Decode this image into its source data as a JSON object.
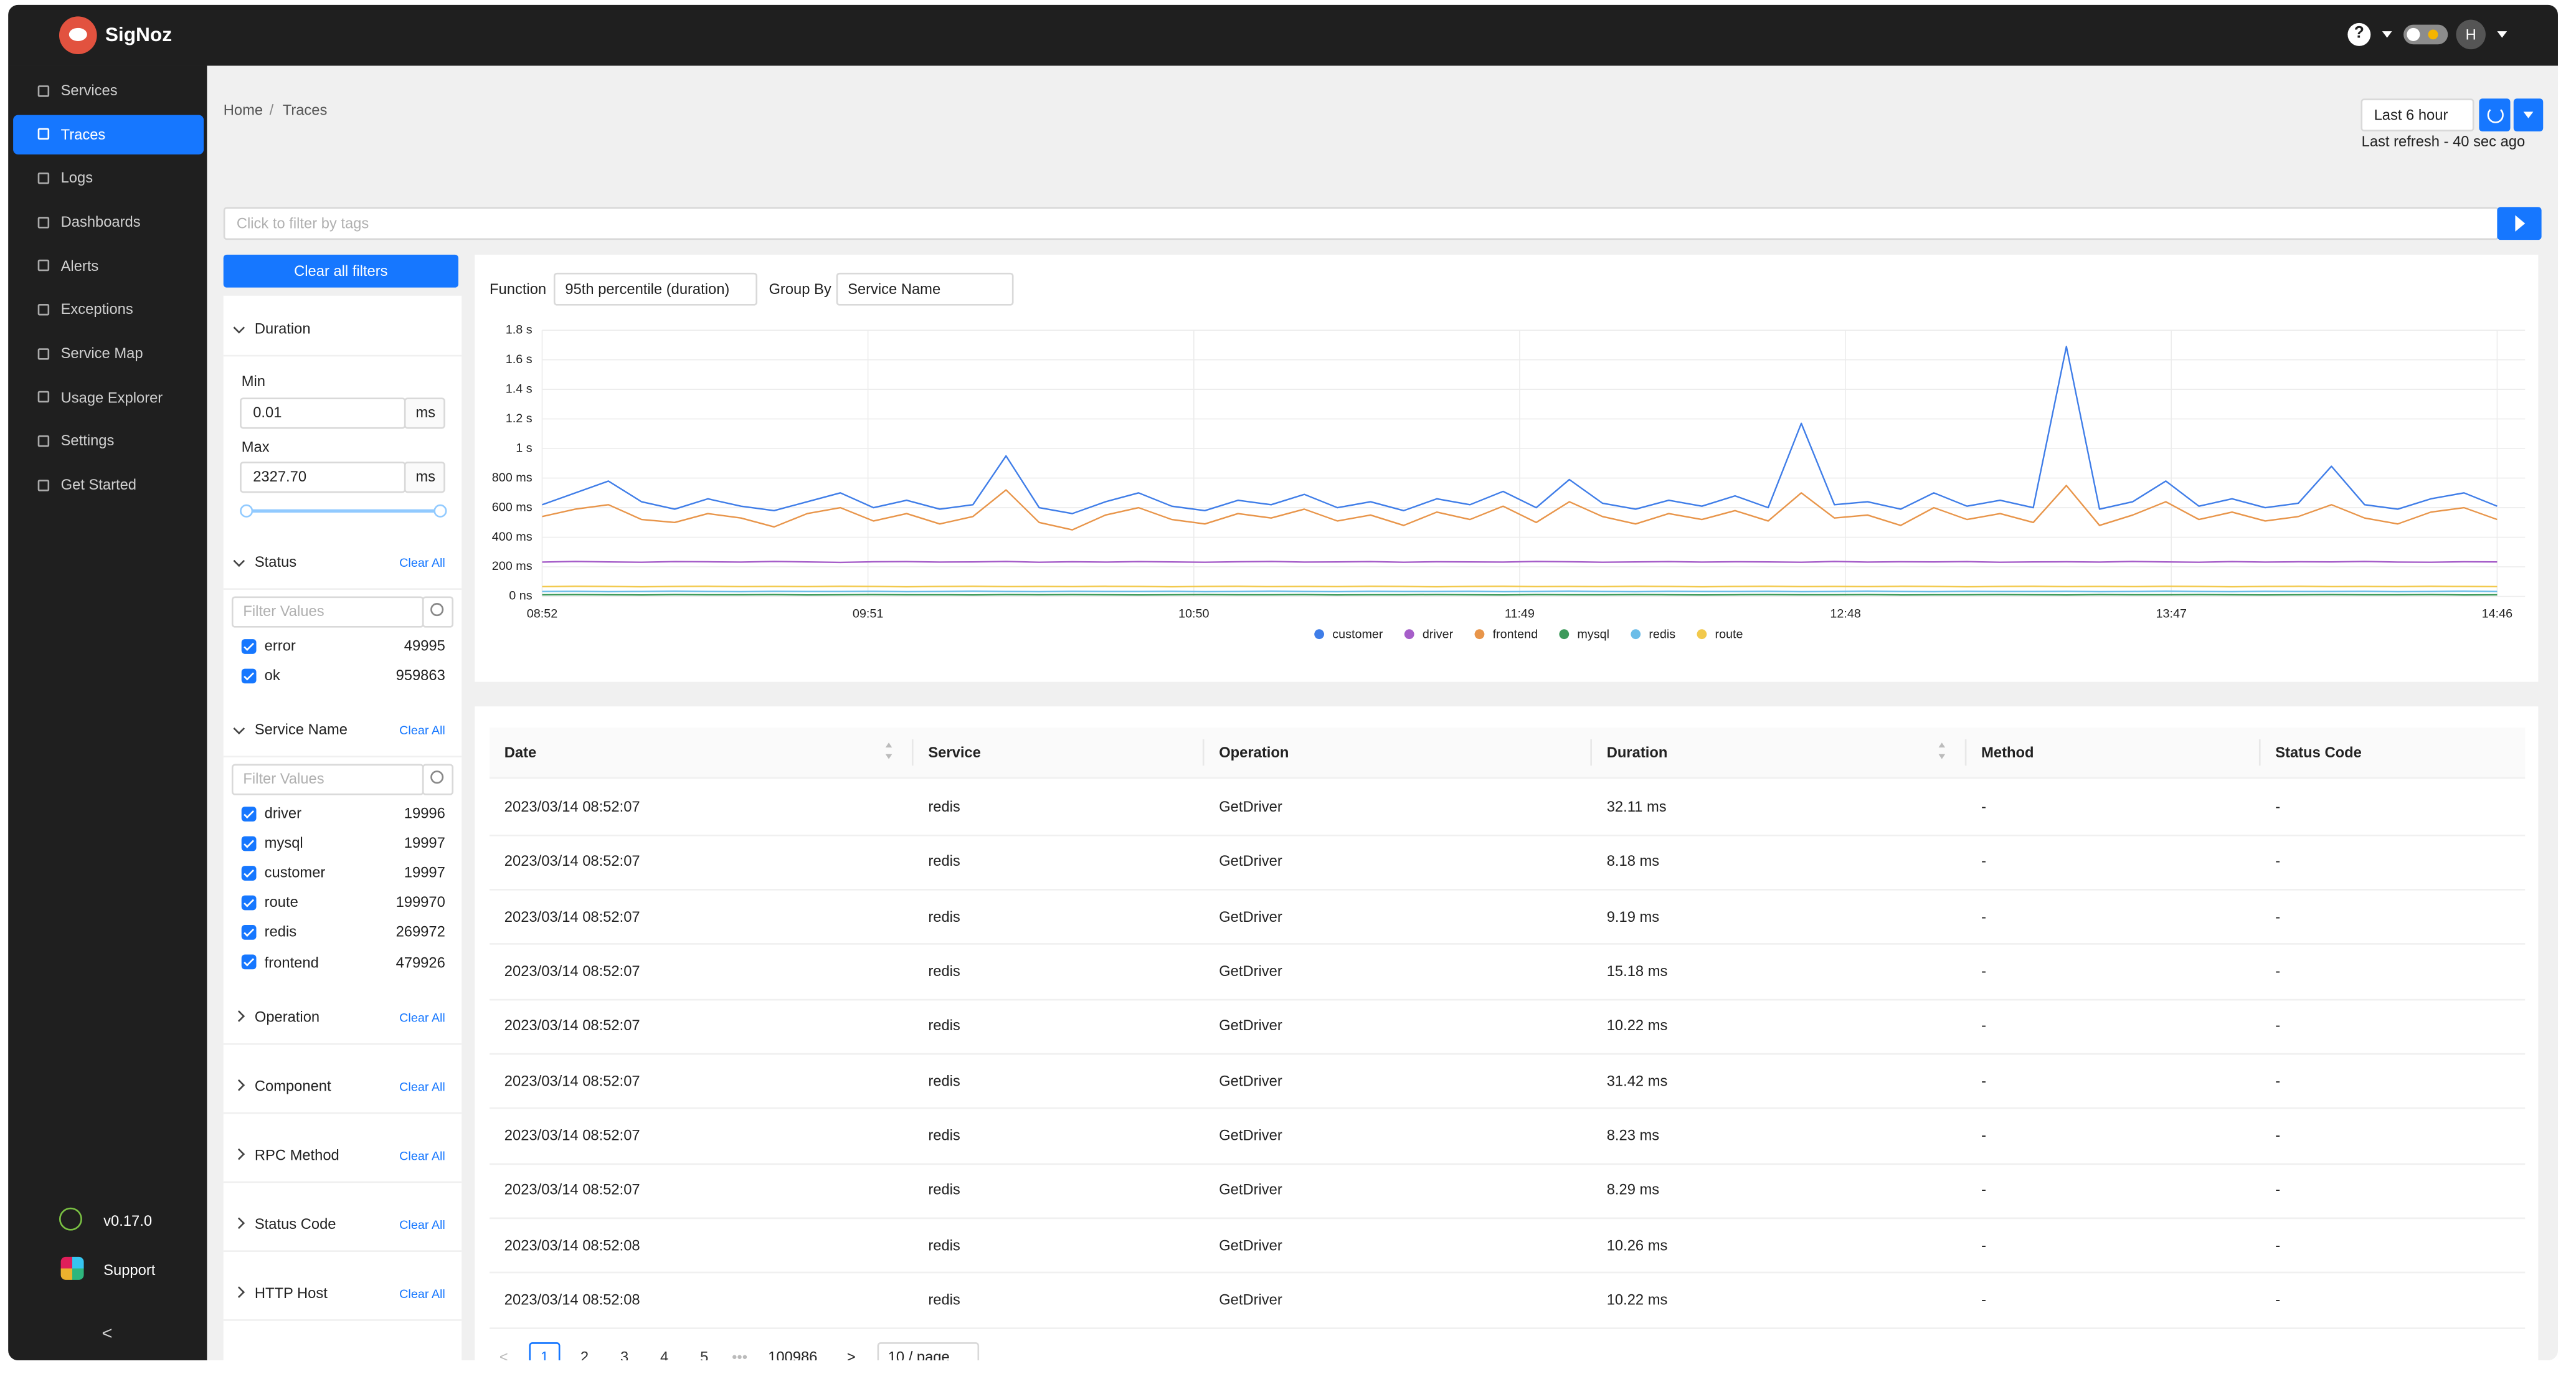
{
  "header": {
    "brand": "SigNoz",
    "avatar": "H"
  },
  "sidebar": {
    "items": [
      "Services",
      "Traces",
      "Logs",
      "Dashboards",
      "Alerts",
      "Exceptions",
      "Service Map",
      "Usage Explorer",
      "Settings",
      "Get Started"
    ],
    "active": 1,
    "version": "v0.17.0",
    "support": "Support"
  },
  "breadcrumb": [
    "Home",
    "Traces"
  ],
  "time_range": {
    "selected": "Last 6 hour",
    "last_refresh": "Last refresh - 40 sec ago"
  },
  "search": {
    "placeholder": "Click to filter by tags"
  },
  "filters": {
    "clear_all": "Clear all filters",
    "duration": {
      "title": "Duration",
      "min_label": "Min",
      "min": "0.01",
      "max_label": "Max",
      "max": "2327.70",
      "unit": "ms"
    },
    "status": {
      "title": "Status",
      "clear": "Clear All",
      "placeholder": "Filter Values",
      "options": [
        {
          "label": "error",
          "count": 49995
        },
        {
          "label": "ok",
          "count": 959863
        }
      ]
    },
    "service_name": {
      "title": "Service Name",
      "clear": "Clear All",
      "placeholder": "Filter Values",
      "options": [
        {
          "label": "driver",
          "count": 19996
        },
        {
          "label": "mysql",
          "count": 19997
        },
        {
          "label": "customer",
          "count": 19997
        },
        {
          "label": "route",
          "count": 199970
        },
        {
          "label": "redis",
          "count": 269972
        },
        {
          "label": "frontend",
          "count": 479926
        }
      ]
    },
    "collapsed": [
      {
        "title": "Operation",
        "clear": "Clear All"
      },
      {
        "title": "Component",
        "clear": "Clear All"
      },
      {
        "title": "RPC Method",
        "clear": "Clear All"
      },
      {
        "title": "Status Code",
        "clear": "Clear All"
      },
      {
        "title": "HTTP Host",
        "clear": "Clear All"
      }
    ]
  },
  "chart_controls": {
    "function_label": "Function",
    "function": "95th percentile (duration)",
    "group_by_label": "Group By",
    "group_by": "Service Name"
  },
  "chart_data": {
    "type": "line",
    "x": [
      "08:52",
      "08:58",
      "09:04",
      "09:10",
      "09:16",
      "09:22",
      "09:28",
      "09:34",
      "09:40",
      "09:46",
      "09:52",
      "09:58",
      "10:04",
      "10:10",
      "10:16",
      "10:22",
      "10:28",
      "10:34",
      "10:40",
      "10:46",
      "10:52",
      "10:58",
      "11:04",
      "11:10",
      "11:16",
      "11:22",
      "11:28",
      "11:34",
      "11:40",
      "11:46",
      "11:52",
      "11:58",
      "12:04",
      "12:10",
      "12:16",
      "12:22",
      "12:28",
      "12:34",
      "12:40",
      "12:46",
      "12:52",
      "12:58",
      "13:04",
      "13:10",
      "13:16",
      "13:22",
      "13:28",
      "13:34",
      "13:40",
      "13:46",
      "13:52",
      "13:58",
      "14:04",
      "14:10",
      "14:16",
      "14:22",
      "14:28",
      "14:34",
      "14:40",
      "14:46"
    ],
    "xticks": [
      "08:52",
      "09:51",
      "10:50",
      "11:49",
      "12:48",
      "13:47",
      "14:46"
    ],
    "ylim": [
      0,
      1800
    ],
    "yticks": [
      {
        "value": 0,
        "label": "0 ns"
      },
      {
        "value": 200,
        "label": "200 ms"
      },
      {
        "value": 400,
        "label": "400 ms"
      },
      {
        "value": 600,
        "label": "600 ms"
      },
      {
        "value": 800,
        "label": "800 ms"
      },
      {
        "value": 1000,
        "label": "1 s"
      },
      {
        "value": 1200,
        "label": "1.2 s"
      },
      {
        "value": 1400,
        "label": "1.4 s"
      },
      {
        "value": 1600,
        "label": "1.6 s"
      },
      {
        "value": 1800,
        "label": "1.8 s"
      }
    ],
    "grid": true,
    "legend": "bottom",
    "series": [
      {
        "name": "customer",
        "color": "#3f7de8",
        "values": [
          620,
          700,
          780,
          640,
          590,
          660,
          610,
          580,
          640,
          700,
          600,
          650,
          590,
          620,
          950,
          600,
          560,
          640,
          700,
          610,
          580,
          650,
          620,
          690,
          600,
          640,
          580,
          660,
          620,
          710,
          600,
          790,
          630,
          590,
          650,
          610,
          680,
          600,
          1170,
          620,
          640,
          590,
          700,
          610,
          650,
          600,
          1690,
          590,
          640,
          780,
          610,
          660,
          600,
          630,
          880,
          620,
          590,
          660,
          700,
          610
        ]
      },
      {
        "name": "driver",
        "color": "#a65ec9",
        "values": [
          232,
          236,
          233,
          231,
          235,
          234,
          232,
          236,
          233,
          230,
          234,
          235,
          232,
          233,
          236,
          231,
          234,
          232,
          235,
          233,
          231,
          234,
          236,
          232,
          233,
          235,
          231,
          234,
          233,
          232,
          236,
          234,
          231,
          233,
          235,
          232,
          234,
          233,
          231,
          236,
          232,
          234,
          233,
          235,
          231,
          233,
          234,
          232,
          236,
          233,
          231,
          235,
          232,
          234,
          233,
          236,
          232,
          231,
          234,
          233
        ]
      },
      {
        "name": "frontend",
        "color": "#e8954a",
        "values": [
          540,
          590,
          620,
          520,
          500,
          560,
          530,
          470,
          560,
          600,
          510,
          560,
          490,
          540,
          720,
          500,
          450,
          550,
          600,
          520,
          490,
          560,
          530,
          590,
          510,
          550,
          480,
          570,
          520,
          610,
          500,
          640,
          540,
          490,
          560,
          520,
          580,
          510,
          700,
          530,
          550,
          480,
          600,
          520,
          560,
          500,
          750,
          480,
          550,
          640,
          520,
          570,
          510,
          540,
          620,
          530,
          490,
          570,
          600,
          520
        ]
      },
      {
        "name": "mysql",
        "color": "#3d9a5b",
        "values": [
          11,
          12,
          11,
          10,
          12,
          11,
          11,
          12,
          10,
          11,
          12,
          11,
          11,
          10,
          12,
          11,
          12,
          11,
          10,
          11,
          12,
          11,
          11,
          12,
          10,
          11,
          11,
          12,
          11,
          10,
          12,
          11,
          11,
          12,
          11,
          10,
          11,
          12,
          11,
          11,
          12,
          10,
          11,
          11,
          12,
          11,
          10,
          12,
          11,
          11,
          12,
          11,
          10,
          11,
          12,
          11,
          11,
          12,
          10,
          11
        ]
      },
      {
        "name": "redis",
        "color": "#6bbde8",
        "values": [
          33,
          34,
          32,
          33,
          35,
          33,
          32,
          34,
          33,
          33,
          34,
          32,
          33,
          35,
          33,
          32,
          34,
          33,
          33,
          34,
          32,
          33,
          35,
          33,
          32,
          34,
          33,
          33,
          34,
          32,
          33,
          35,
          33,
          32,
          34,
          33,
          33,
          34,
          32,
          33,
          35,
          33,
          32,
          34,
          33,
          33,
          34,
          32,
          33,
          35,
          33,
          32,
          34,
          33,
          33,
          34,
          32,
          33,
          35,
          33
        ]
      },
      {
        "name": "route",
        "color": "#f2c94c",
        "values": [
          66,
          68,
          67,
          65,
          67,
          68,
          66,
          67,
          66,
          68,
          67,
          65,
          67,
          68,
          66,
          67,
          66,
          68,
          67,
          65,
          67,
          68,
          66,
          67,
          66,
          68,
          67,
          65,
          67,
          68,
          66,
          67,
          66,
          68,
          67,
          65,
          67,
          68,
          66,
          67,
          66,
          68,
          67,
          65,
          67,
          68,
          66,
          67,
          66,
          68,
          67,
          65,
          67,
          68,
          66,
          67,
          66,
          68,
          67,
          66
        ]
      }
    ]
  },
  "table": {
    "columns": [
      "Date",
      "Service",
      "Operation",
      "Duration",
      "Method",
      "Status Code"
    ],
    "rows": [
      [
        "2023/03/14 08:52:07",
        "redis",
        "GetDriver",
        "32.11 ms",
        "-",
        "-"
      ],
      [
        "2023/03/14 08:52:07",
        "redis",
        "GetDriver",
        "8.18 ms",
        "-",
        "-"
      ],
      [
        "2023/03/14 08:52:07",
        "redis",
        "GetDriver",
        "9.19 ms",
        "-",
        "-"
      ],
      [
        "2023/03/14 08:52:07",
        "redis",
        "GetDriver",
        "15.18 ms",
        "-",
        "-"
      ],
      [
        "2023/03/14 08:52:07",
        "redis",
        "GetDriver",
        "10.22 ms",
        "-",
        "-"
      ],
      [
        "2023/03/14 08:52:07",
        "redis",
        "GetDriver",
        "31.42 ms",
        "-",
        "-"
      ],
      [
        "2023/03/14 08:52:07",
        "redis",
        "GetDriver",
        "8.23 ms",
        "-",
        "-"
      ],
      [
        "2023/03/14 08:52:07",
        "redis",
        "GetDriver",
        "8.29 ms",
        "-",
        "-"
      ],
      [
        "2023/03/14 08:52:08",
        "redis",
        "GetDriver",
        "10.26 ms",
        "-",
        "-"
      ],
      [
        "2023/03/14 08:52:08",
        "redis",
        "GetDriver",
        "10.22 ms",
        "-",
        "-"
      ]
    ]
  },
  "pagination": {
    "pages": [
      1,
      2,
      3,
      4,
      5
    ],
    "last": 100986,
    "page_size": "10 / page"
  }
}
